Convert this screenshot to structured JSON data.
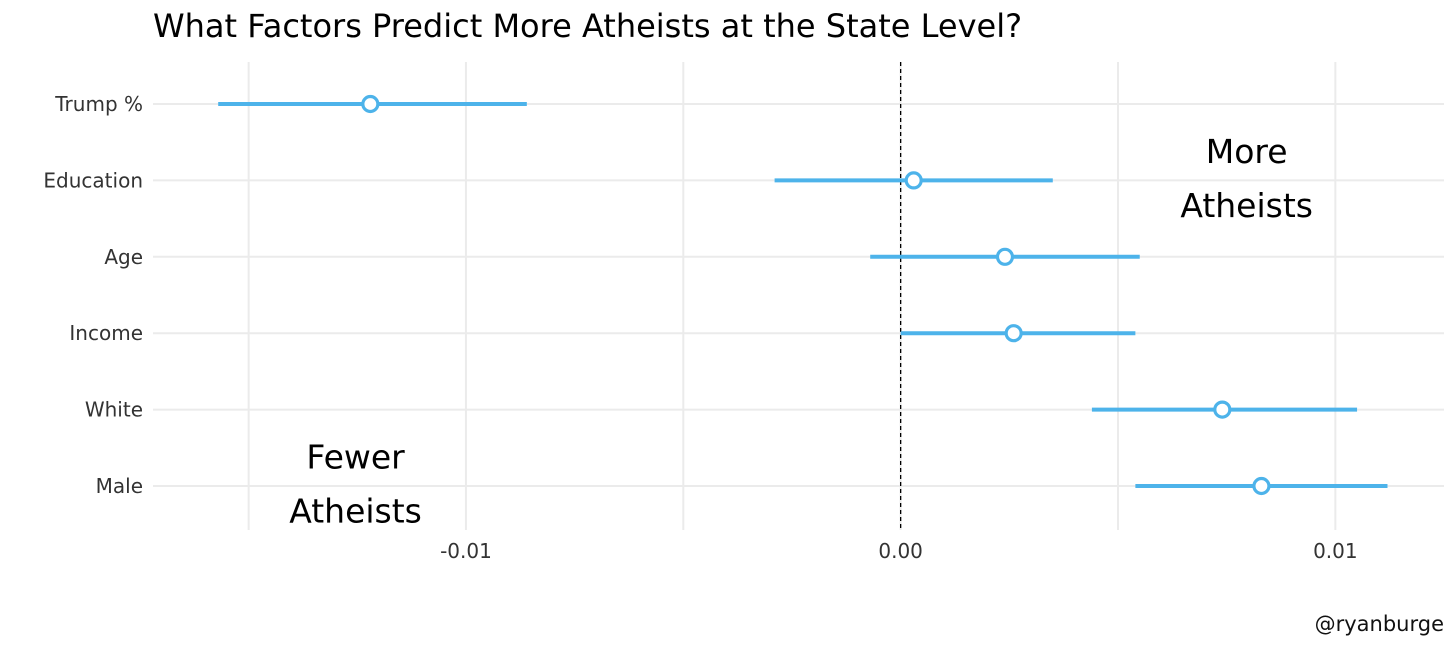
{
  "chart_data": {
    "type": "dot-and-whisker",
    "title": "What Factors Predict More Atheists at the State Level?",
    "xlabel": "",
    "ylabel": "",
    "xlim": [
      -0.0172,
      0.0125
    ],
    "x_ticks": [
      -0.01,
      0.0,
      0.01
    ],
    "x_tick_labels": [
      "-0.01",
      "0.00",
      "0.01"
    ],
    "reference_line": 0.0,
    "grid": true,
    "color": "#4db3ea",
    "categories": [
      "Trump %",
      "Education",
      "Age",
      "Income",
      "White",
      "Male"
    ],
    "estimates": [
      -0.0122,
      0.0003,
      0.0024,
      0.0026,
      0.0074,
      0.0083
    ],
    "lower": [
      -0.0157,
      -0.0029,
      -0.0007,
      -0.0,
      0.0044,
      0.0054
    ],
    "upper": [
      -0.0086,
      0.0035,
      0.0055,
      0.0054,
      0.0105,
      0.0112
    ],
    "annotations": [
      {
        "id": "more",
        "lines": [
          "More",
          "Atheists"
        ],
        "x": 0.0075,
        "row": 0.8
      },
      {
        "id": "fewer",
        "lines": [
          "Fewer",
          "Atheists"
        ],
        "x": -0.013,
        "row": 4.8
      }
    ],
    "caption": "@ryanburge"
  }
}
